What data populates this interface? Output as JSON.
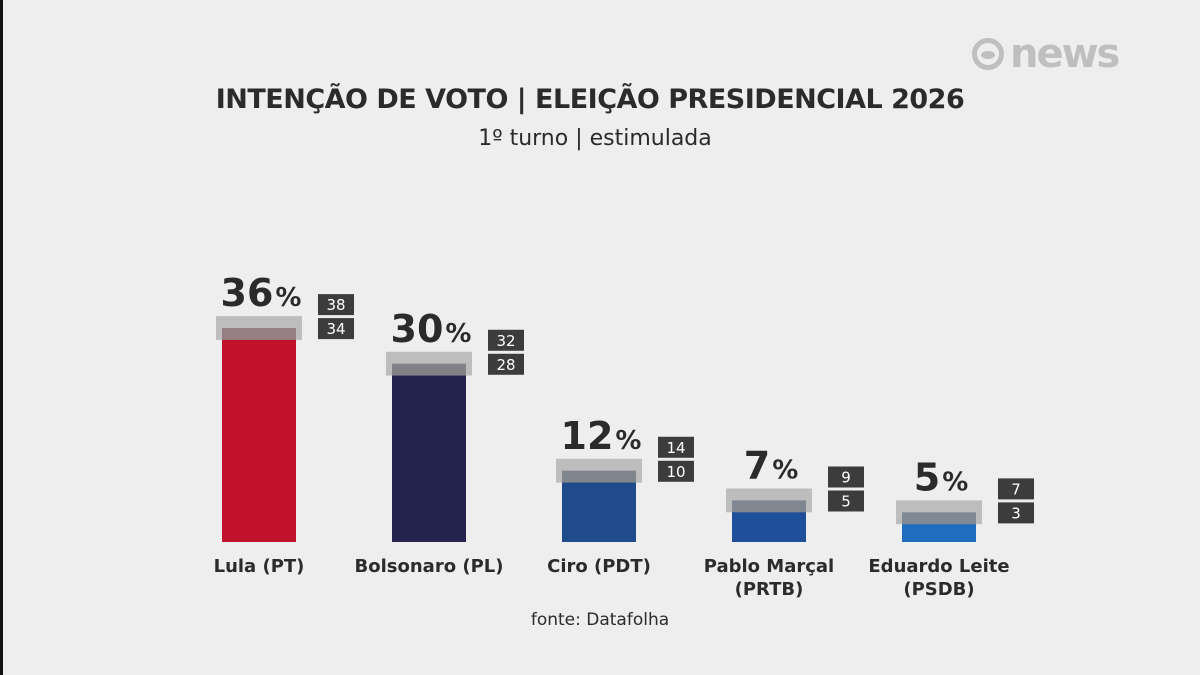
{
  "brand": {
    "logo_text": "news"
  },
  "header": {
    "title": "INTENÇÃO DE VOTO | ELEIÇÃO PRESIDENCIAL 2026",
    "subtitle": "1º turno | estimulada"
  },
  "footer": {
    "source": "fonte: Datafolha"
  },
  "chart_data": {
    "type": "bar",
    "categories": [
      "Lula (PT)",
      "Bolsonaro (PL)",
      "Ciro (PDT)",
      "Pablo Marçal (PRTB)",
      "Eduardo Leite (PSDB)"
    ],
    "category_lines": [
      [
        "Lula (PT)"
      ],
      [
        "Bolsonaro (PL)"
      ],
      [
        "Ciro (PDT)"
      ],
      [
        "Pablo Marçal",
        "(PRTB)"
      ],
      [
        "Eduardo Leite",
        "(PSDB)"
      ]
    ],
    "values": [
      36,
      30,
      12,
      7,
      5
    ],
    "value_labels": [
      "36",
      "30",
      "12",
      "7",
      "5"
    ],
    "unit": "%",
    "upper": [
      38,
      32,
      14,
      9,
      7
    ],
    "lower": [
      34,
      28,
      10,
      5,
      3
    ],
    "colors": [
      "#c0122b",
      "#24244e",
      "#1f4a8c",
      "#1f4f9a",
      "#1f6dbf"
    ],
    "interval_color": "#b4b4b4",
    "range_label_bg": "#3c3c3c",
    "ylim": [
      0,
      40
    ],
    "grid": false,
    "legend": "none"
  }
}
